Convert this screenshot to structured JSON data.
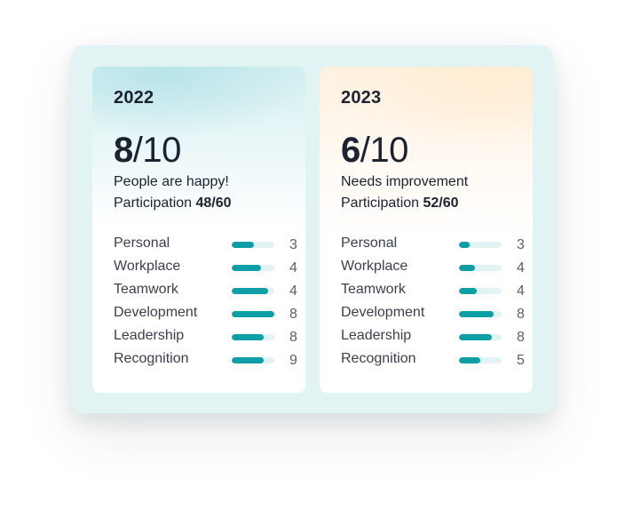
{
  "accent_color": "#0e9ea6",
  "cards": [
    {
      "year": "2022",
      "score": "8",
      "score_max": "/10",
      "tagline": "People are happy!",
      "participation_label": "Participation",
      "participation_value": "48/60",
      "metrics": [
        {
          "label": "Personal",
          "value": "3",
          "bar_fill": 0.52
        },
        {
          "label": "Workplace",
          "value": "4",
          "bar_fill": 0.68
        },
        {
          "label": "Teamwork",
          "value": "4",
          "bar_fill": 0.85
        },
        {
          "label": "Development",
          "value": "8",
          "bar_fill": 1.0
        },
        {
          "label": "Leadership",
          "value": "8",
          "bar_fill": 0.76
        },
        {
          "label": "Recognition",
          "value": "9",
          "bar_fill": 0.76
        }
      ]
    },
    {
      "year": "2023",
      "score": "6",
      "score_max": "/10",
      "tagline": "Needs improvement",
      "participation_label": "Participation",
      "participation_value": "52/60",
      "metrics": [
        {
          "label": "Personal",
          "value": "3",
          "bar_fill": 0.25
        },
        {
          "label": "Workplace",
          "value": "4",
          "bar_fill": 0.38
        },
        {
          "label": "Teamwork",
          "value": "4",
          "bar_fill": 0.42
        },
        {
          "label": "Development",
          "value": "8",
          "bar_fill": 0.82
        },
        {
          "label": "Leadership",
          "value": "8",
          "bar_fill": 0.78
        },
        {
          "label": "Recognition",
          "value": "5",
          "bar_fill": 0.5
        }
      ]
    }
  ]
}
